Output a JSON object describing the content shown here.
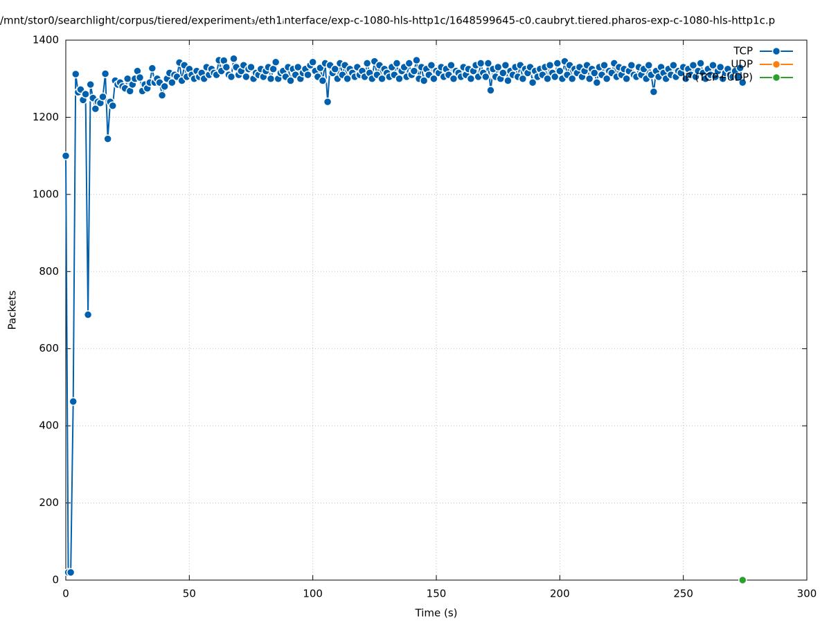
{
  "chart_data": {
    "type": "line",
    "title": "/mnt/stor0/searchlight/corpus/tiered/experiment₃/eth1ᵢnterface/exp-c-1080-hls-http1c/1648599645-c0.caubryt.tiered.pharos-exp-c-1080-hls-http1c.p",
    "x_label": "Time (s)",
    "y_label": "Packets",
    "xlim": [
      0,
      300
    ],
    "xticks": [
      0,
      50,
      100,
      150,
      200,
      250,
      300
    ],
    "ylim": [
      0,
      1400
    ],
    "yticks": [
      0,
      200,
      400,
      600,
      800,
      1000,
      1200,
      1400
    ],
    "grid": true,
    "legend": "top-right",
    "series": [
      {
        "name": "TCP",
        "color": "#0060ad",
        "x": [
          0,
          1,
          2,
          3,
          4,
          5,
          6,
          7,
          8,
          9,
          10,
          11,
          12,
          13,
          14,
          15,
          16,
          17,
          18,
          19,
          20,
          21,
          22,
          23,
          24,
          25,
          26,
          27,
          28,
          29,
          30,
          31,
          32,
          33,
          34,
          35,
          36,
          37,
          38,
          39,
          40,
          41,
          42,
          43,
          44,
          45,
          46,
          47,
          48,
          49,
          50,
          51,
          52,
          53,
          54,
          55,
          56,
          57,
          58,
          59,
          60,
          61,
          62,
          63,
          64,
          65,
          66,
          67,
          68,
          69,
          70,
          71,
          72,
          73,
          74,
          75,
          76,
          77,
          78,
          79,
          80,
          81,
          82,
          83,
          84,
          85,
          86,
          87,
          88,
          89,
          90,
          91,
          92,
          93,
          94,
          95,
          96,
          97,
          98,
          99,
          100,
          101,
          102,
          103,
          104,
          105,
          106,
          107,
          108,
          109,
          110,
          111,
          112,
          113,
          114,
          115,
          116,
          117,
          118,
          119,
          120,
          121,
          122,
          123,
          124,
          125,
          126,
          127,
          128,
          129,
          130,
          131,
          132,
          133,
          134,
          135,
          136,
          137,
          138,
          139,
          140,
          141,
          142,
          143,
          144,
          145,
          146,
          147,
          148,
          149,
          150,
          151,
          152,
          153,
          154,
          155,
          156,
          157,
          158,
          159,
          160,
          161,
          162,
          163,
          164,
          165,
          166,
          167,
          168,
          169,
          170,
          171,
          172,
          173,
          174,
          175,
          176,
          177,
          178,
          179,
          180,
          181,
          182,
          183,
          184,
          185,
          186,
          187,
          188,
          189,
          190,
          191,
          192,
          193,
          194,
          195,
          196,
          197,
          198,
          199,
          200,
          201,
          202,
          203,
          204,
          205,
          206,
          207,
          208,
          209,
          210,
          211,
          212,
          213,
          214,
          215,
          216,
          217,
          218,
          219,
          220,
          221,
          222,
          223,
          224,
          225,
          226,
          227,
          228,
          229,
          230,
          231,
          232,
          233,
          234,
          235,
          236,
          237,
          238,
          239,
          240,
          241,
          242,
          243,
          244,
          245,
          246,
          247,
          248,
          249,
          250,
          251,
          252,
          253,
          254,
          255,
          256,
          257,
          258,
          259,
          260,
          261,
          262,
          263,
          264,
          265,
          266,
          267,
          268,
          269,
          270,
          271,
          272,
          273,
          274
        ],
        "values": [
          1100,
          20,
          20,
          463,
          1312,
          1265,
          1272,
          1245,
          1260,
          688,
          1285,
          1250,
          1222,
          1240,
          1237,
          1253,
          1313,
          1144,
          1240,
          1230,
          1295,
          1285,
          1290,
          1280,
          1275,
          1300,
          1268,
          1285,
          1300,
          1320,
          1303,
          1268,
          1285,
          1275,
          1290,
          1327,
          1290,
          1300,
          1290,
          1257,
          1280,
          1300,
          1315,
          1290,
          1310,
          1305,
          1342,
          1295,
          1335,
          1305,
          1325,
          1310,
          1300,
          1320,
          1305,
          1315,
          1300,
          1330,
          1310,
          1325,
          1315,
          1310,
          1348,
          1320,
          1347,
          1330,
          1310,
          1305,
          1352,
          1330,
          1310,
          1320,
          1335,
          1305,
          1325,
          1330,
          1300,
          1315,
          1310,
          1325,
          1305,
          1320,
          1330,
          1300,
          1325,
          1343,
          1300,
          1315,
          1320,
          1305,
          1330,
          1295,
          1325,
          1310,
          1330,
          1300,
          1315,
          1325,
          1310,
          1335,
          1343,
          1320,
          1305,
          1328,
          1295,
          1340,
          1240,
          1335,
          1315,
          1325,
          1300,
          1340,
          1310,
          1335,
          1300,
          1325,
          1315,
          1305,
          1330,
          1310,
          1320,
          1305,
          1340,
          1315,
          1300,
          1345,
          1310,
          1335,
          1300,
          1325,
          1315,
          1305,
          1330,
          1310,
          1340,
          1300,
          1320,
          1330,
          1305,
          1340,
          1310,
          1320,
          1348,
          1300,
          1330,
          1295,
          1325,
          1310,
          1335,
          1300,
          1320,
          1315,
          1330,
          1305,
          1325,
          1310,
          1335,
          1300,
          1320,
          1315,
          1305,
          1330,
          1310,
          1325,
          1300,
          1320,
          1335,
          1305,
          1340,
          1315,
          1305,
          1340,
          1270,
          1325,
          1305,
          1330,
          1300,
          1315,
          1335,
          1295,
          1320,
          1310,
          1330,
          1305,
          1335,
          1300,
          1325,
          1315,
          1330,
          1290,
          1320,
          1305,
          1325,
          1310,
          1330,
          1300,
          1335,
          1315,
          1305,
          1340,
          1320,
          1300,
          1345,
          1310,
          1335,
          1300,
          1325,
          1315,
          1330,
          1305,
          1320,
          1335,
          1300,
          1325,
          1315,
          1290,
          1330,
          1310,
          1335,
          1300,
          1320,
          1315,
          1340,
          1305,
          1330,
          1310,
          1325,
          1300,
          1320,
          1335,
          1310,
          1305,
          1330,
          1310,
          1325,
          1300,
          1335,
          1310,
          1266,
          1320,
          1305,
          1330,
          1315,
          1300,
          1325,
          1310,
          1335,
          1305,
          1320,
          1315,
          1330,
          1300,
          1325,
          1310,
          1335,
          1305,
          1320,
          1340,
          1315,
          1300,
          1325,
          1310,
          1335,
          1305,
          1320,
          1330,
          1300,
          1315,
          1325,
          1310,
          1305,
          1320,
          1305,
          1328,
          1290
        ]
      },
      {
        "name": "UDP",
        "color": "#ff7f0e",
        "x": [],
        "values": []
      },
      {
        "name": "IP (TCP+UDP)",
        "color": "#2ca02c",
        "x": [
          274
        ],
        "values": [
          0
        ]
      }
    ]
  }
}
